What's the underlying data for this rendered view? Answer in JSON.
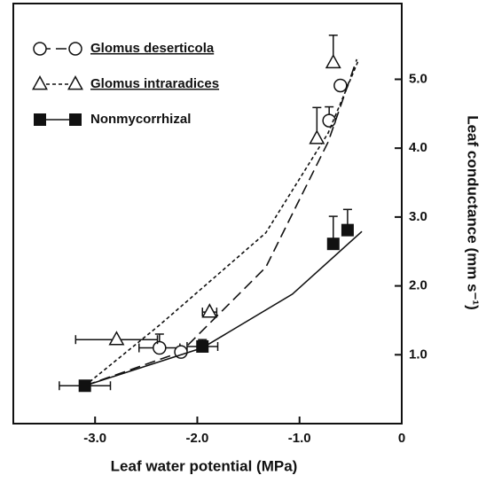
{
  "chart_data": {
    "type": "scatter",
    "xlabel": "Leaf water potential  (MPa)",
    "ylabel": "Leaf conductance  (mm s⁻¹)",
    "xlim": [
      -3.8,
      0
    ],
    "ylim": [
      0,
      6.1
    ],
    "xticks": [
      {
        "value": -3,
        "label": "-3.0"
      },
      {
        "value": -2,
        "label": "-2.0"
      },
      {
        "value": -1,
        "label": "-1.0"
      },
      0
    ],
    "yticks": [
      {
        "value": 1,
        "label": "1.0"
      },
      {
        "value": 2,
        "label": "2.0"
      },
      {
        "value": 3,
        "label": "3.0"
      },
      {
        "value": 4,
        "label": "4.0"
      },
      {
        "value": 5,
        "label": "5.0"
      }
    ],
    "legend": "upper left",
    "series": [
      {
        "name": "Glomus deserticola",
        "marker": "circle",
        "line": "dashed",
        "color": "#111111",
        "x": [
          -2.37,
          -2.16,
          -0.71,
          -0.6
        ],
        "values": [
          1.1,
          1.04,
          4.4,
          4.91
        ],
        "xerr": [
          0.2,
          0,
          0,
          0
        ],
        "yerr": [
          0.2,
          0,
          0.2,
          0
        ],
        "fit_x": [
          -3.1,
          -2.16,
          -1.33,
          -0.72,
          -0.44
        ],
        "fit_y": [
          0.55,
          1.04,
          2.27,
          4.09,
          5.29
        ]
      },
      {
        "name": "Glomus intraradices",
        "marker": "triangle",
        "line": "dotted",
        "color": "#111111",
        "x": [
          -2.79,
          -1.88,
          -0.83,
          -0.67
        ],
        "values": [
          1.22,
          1.62,
          4.14,
          5.24
        ],
        "xerr": [
          0.4,
          0.07,
          0,
          0
        ],
        "yerr": [
          0,
          0,
          0.45,
          0.4
        ],
        "fit_x": [
          -3.1,
          -2.37,
          -1.33,
          -0.72,
          -0.42
        ],
        "fit_y": [
          0.55,
          1.43,
          2.77,
          4.22,
          5.29
        ]
      },
      {
        "name": "Nonmycorrhizal",
        "marker": "square",
        "line": "solid",
        "color": "#111111",
        "x": [
          -3.1,
          -1.95,
          -0.67,
          -0.53
        ],
        "values": [
          0.55,
          1.12,
          2.61,
          2.81
        ],
        "xerr": [
          0.25,
          0.15,
          0,
          0
        ],
        "yerr": [
          0,
          0.1,
          0.4,
          0.3
        ],
        "fit_x": [
          -3.1,
          -1.95,
          -1.07,
          -0.39
        ],
        "fit_y": [
          0.55,
          1.1,
          1.88,
          2.79
        ]
      }
    ]
  }
}
